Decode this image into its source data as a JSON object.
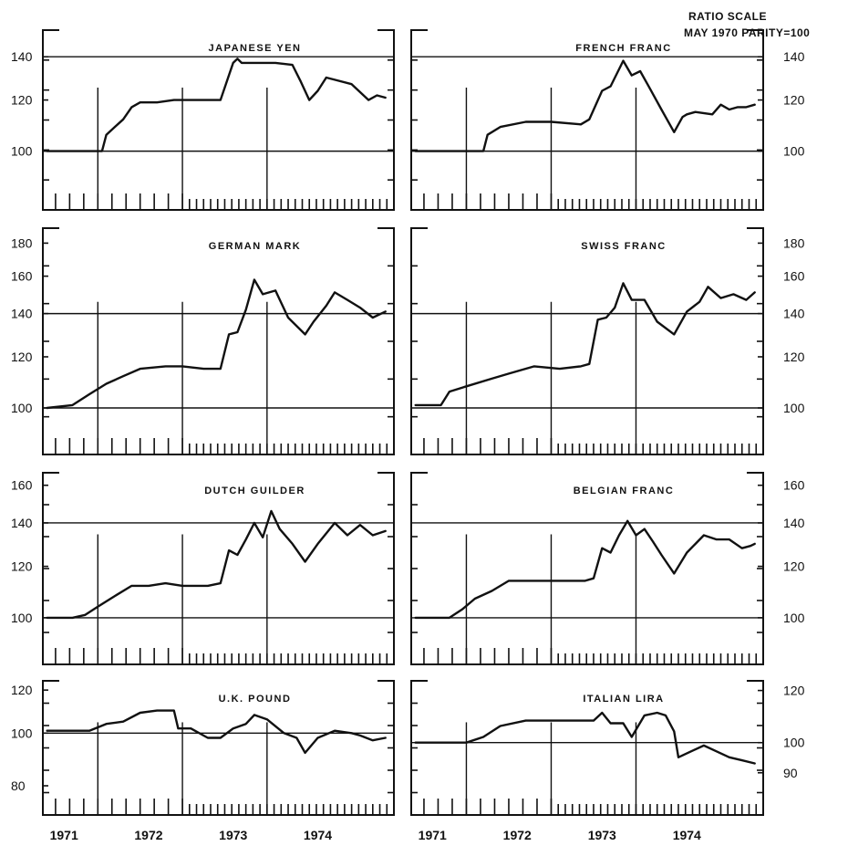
{
  "header": {
    "scale_line1": "RATIO SCALE",
    "scale_line2": "MAY 1970 PARITY=100"
  },
  "chart_data": [
    {
      "type": "line",
      "title": "JAPANESE YEN",
      "ylim": [
        90,
        150
      ],
      "yticks": [
        100,
        120,
        140
      ],
      "ref_lines": [
        100,
        140
      ],
      "x": [
        1970.9,
        1971.55,
        1971.6,
        1971.7,
        1971.8,
        1971.9,
        1972.0,
        1972.2,
        1972.4,
        1972.6,
        1972.75,
        1972.95,
        1973.1,
        1973.15,
        1973.2,
        1973.4,
        1973.6,
        1973.8,
        1973.9,
        1974.0,
        1974.1,
        1974.2,
        1974.3,
        1974.5,
        1974.7,
        1974.8,
        1974.9
      ],
      "values": [
        100,
        100,
        106,
        109,
        112,
        117,
        119,
        119,
        120,
        120,
        120,
        120,
        137,
        139,
        137,
        137,
        137,
        136,
        128,
        120,
        124,
        130,
        129,
        127,
        120,
        122,
        121
      ]
    },
    {
      "type": "line",
      "title": "FRENCH FRANC",
      "ylim": [
        90,
        150
      ],
      "yticks": [
        100,
        120,
        140
      ],
      "ref_lines": [
        100,
        140
      ],
      "x": [
        1970.9,
        1971.7,
        1971.75,
        1971.9,
        1972.2,
        1972.5,
        1972.85,
        1972.95,
        1973.1,
        1973.2,
        1973.35,
        1973.45,
        1973.55,
        1973.65,
        1973.8,
        1973.95,
        1974.05,
        1974.1,
        1974.2,
        1974.4,
        1974.5,
        1974.6,
        1974.7,
        1974.8,
        1974.9
      ],
      "values": [
        100,
        100,
        106,
        109,
        111,
        111,
        110,
        112,
        124,
        126,
        138,
        131,
        133,
        126,
        116,
        107,
        113,
        114,
        115,
        114,
        118,
        116,
        117,
        117,
        118
      ]
    },
    {
      "type": "line",
      "title": "GERMAN MARK",
      "ylim": [
        94,
        185
      ],
      "yticks": [
        100,
        120,
        140,
        160,
        180
      ],
      "ref_lines": [
        100,
        140
      ],
      "x": [
        1970.9,
        1971.2,
        1971.4,
        1971.6,
        1971.8,
        1972.0,
        1972.3,
        1972.5,
        1972.75,
        1972.95,
        1973.05,
        1973.15,
        1973.25,
        1973.35,
        1973.45,
        1973.6,
        1973.75,
        1973.95,
        1974.05,
        1974.2,
        1974.3,
        1974.45,
        1974.6,
        1974.75,
        1974.9
      ],
      "values": [
        100,
        101,
        105,
        109,
        112,
        115,
        116,
        116,
        115,
        115,
        130,
        131,
        142,
        158,
        150,
        152,
        138,
        130,
        136,
        144,
        151,
        147,
        143,
        138,
        141
      ]
    },
    {
      "type": "line",
      "title": "SWISS FRANC",
      "ylim": [
        94,
        185
      ],
      "yticks": [
        100,
        120,
        140,
        160,
        180
      ],
      "ref_lines": [
        100,
        140
      ],
      "x": [
        1970.9,
        1971.2,
        1971.3,
        1971.5,
        1971.8,
        1972.0,
        1972.3,
        1972.6,
        1972.85,
        1972.95,
        1973.05,
        1973.15,
        1973.25,
        1973.35,
        1973.45,
        1973.6,
        1973.75,
        1973.95,
        1974.1,
        1974.25,
        1974.35,
        1974.5,
        1974.65,
        1974.8,
        1974.9
      ],
      "values": [
        101,
        101,
        106,
        108,
        111,
        113,
        116,
        115,
        116,
        117,
        137,
        138,
        143,
        156,
        147,
        147,
        136,
        130,
        141,
        146,
        154,
        148,
        150,
        147,
        151
      ]
    },
    {
      "type": "line",
      "title": "DUTCH GUILDER",
      "ylim": [
        94,
        163
      ],
      "yticks": [
        100,
        120,
        140,
        160
      ],
      "ref_lines": [
        100,
        140
      ],
      "x": [
        1970.9,
        1971.2,
        1971.35,
        1971.5,
        1971.7,
        1971.9,
        1972.1,
        1972.3,
        1972.5,
        1972.8,
        1972.95,
        1973.05,
        1973.15,
        1973.25,
        1973.35,
        1973.45,
        1973.55,
        1973.65,
        1973.8,
        1973.95,
        1974.1,
        1974.3,
        1974.45,
        1974.6,
        1974.75,
        1974.9
      ],
      "values": [
        100,
        100,
        101,
        104,
        108,
        112,
        112,
        113,
        112,
        112,
        113,
        127,
        125,
        132,
        140,
        133,
        146,
        137,
        130,
        122,
        130,
        140,
        134,
        139,
        134,
        136
      ]
    },
    {
      "type": "line",
      "title": "BELGIAN FRANC",
      "ylim": [
        94,
        163
      ],
      "yticks": [
        100,
        120,
        140,
        160
      ],
      "ref_lines": [
        100,
        140
      ],
      "x": [
        1970.9,
        1971.3,
        1971.45,
        1971.6,
        1971.8,
        1972.0,
        1972.3,
        1972.6,
        1972.9,
        1973.0,
        1973.1,
        1973.2,
        1973.3,
        1973.4,
        1973.5,
        1973.6,
        1973.7,
        1973.8,
        1973.95,
        1974.1,
        1974.3,
        1974.45,
        1974.6,
        1974.75,
        1974.85,
        1974.9
      ],
      "values": [
        100,
        100,
        103,
        107,
        110,
        114,
        114,
        114,
        114,
        115,
        128,
        126,
        134,
        141,
        134,
        137,
        131,
        125,
        117,
        126,
        134,
        132,
        132,
        128,
        129,
        130
      ]
    },
    {
      "type": "line",
      "title": "U.K. POUND",
      "ylim": [
        80,
        121
      ],
      "yticks": [
        80,
        100,
        120
      ],
      "ref_lines": [
        100
      ],
      "x": [
        1970.9,
        1971.2,
        1971.4,
        1971.6,
        1971.8,
        1972.0,
        1972.2,
        1972.4,
        1972.45,
        1972.6,
        1972.8,
        1972.95,
        1973.1,
        1973.25,
        1973.35,
        1973.5,
        1973.7,
        1973.85,
        1973.95,
        1974.1,
        1974.3,
        1974.5,
        1974.6,
        1974.75,
        1974.9
      ],
      "values": [
        101,
        101,
        101,
        104,
        105,
        109,
        110,
        110,
        102,
        102,
        98,
        98,
        102,
        104,
        108,
        106,
        100,
        98,
        92,
        98,
        101,
        100,
        99,
        97,
        98
      ]
    },
    {
      "type": "line",
      "title": "ITALIAN LIRA",
      "ylim": [
        86,
        121
      ],
      "yticks": [
        90,
        100,
        120
      ],
      "ref_lines": [
        100
      ],
      "x": [
        1970.9,
        1971.2,
        1971.5,
        1971.7,
        1971.9,
        1972.2,
        1972.5,
        1972.8,
        1973.0,
        1973.1,
        1973.2,
        1973.35,
        1973.45,
        1973.6,
        1973.75,
        1973.85,
        1973.95,
        1974.0,
        1974.15,
        1974.3,
        1974.45,
        1974.6,
        1974.75,
        1974.9
      ],
      "values": [
        100,
        100,
        100,
        102,
        106,
        108,
        108,
        108,
        108,
        111,
        107,
        107,
        102,
        110,
        111,
        110,
        104,
        95,
        97,
        99,
        97,
        95,
        94,
        93
      ]
    }
  ],
  "x_axis": {
    "years": [
      "1971",
      "1972",
      "1973",
      "1974"
    ],
    "year_label_positions": [
      1971.0,
      1972.0,
      1973.0,
      1974.0
    ]
  }
}
